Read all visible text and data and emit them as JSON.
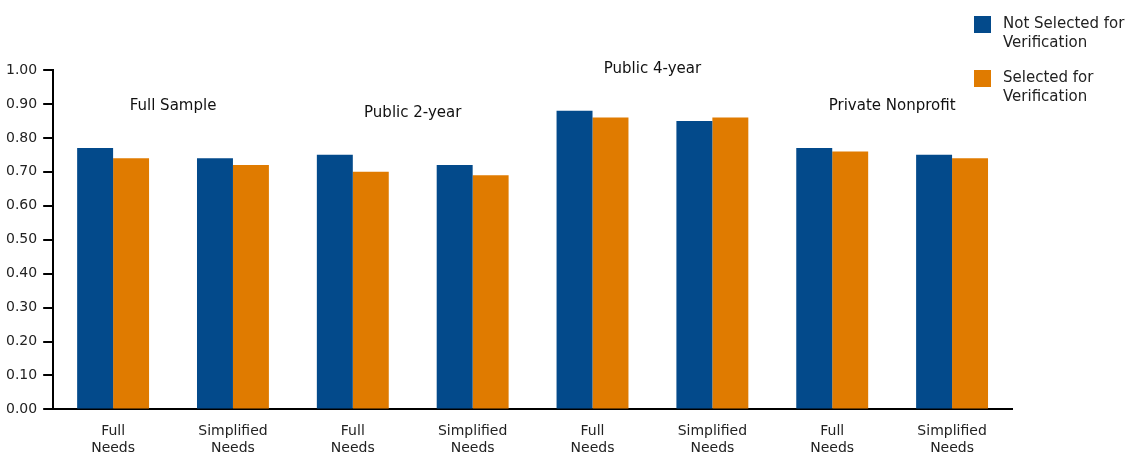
{
  "chart_data": {
    "type": "bar",
    "categories": [
      "Full Needs",
      "Simplified Needs",
      "Full Needs",
      "Simplified Needs",
      "Full Needs",
      "Simplified Needs",
      "Full Needs",
      "Simplified Needs"
    ],
    "series": [
      {
        "name": "Not Selected for Verification",
        "color": "#034a8b",
        "values": [
          0.77,
          0.74,
          0.75,
          0.72,
          0.88,
          0.85,
          0.77,
          0.75
        ]
      },
      {
        "name": "Selected for Verification",
        "color": "#e07b00",
        "values": [
          0.74,
          0.72,
          0.7,
          0.69,
          0.86,
          0.86,
          0.76,
          0.74
        ]
      }
    ],
    "annotations": [
      "Full Sample",
      "Public 2-year",
      "Public 4-year",
      "Private Nonprofit"
    ],
    "ylim": [
      0,
      1
    ],
    "yticks": [
      {
        "value": 0,
        "label": "0.00"
      },
      {
        "value": 0.1,
        "label": "0.10"
      },
      {
        "value": 0.2,
        "label": "0.20"
      },
      {
        "value": 0.3,
        "label": "0.30"
      },
      {
        "value": 0.4,
        "label": "0.40"
      },
      {
        "value": 0.5,
        "label": "0.50"
      },
      {
        "value": 0.6,
        "label": "0.60"
      },
      {
        "value": 0.7,
        "label": "0.70"
      },
      {
        "value": 0.8,
        "label": "0.80"
      },
      {
        "value": 0.9,
        "label": "0.90"
      },
      {
        "value": 1,
        "label": "1.00"
      }
    ],
    "grid": false,
    "legend": "top right"
  }
}
